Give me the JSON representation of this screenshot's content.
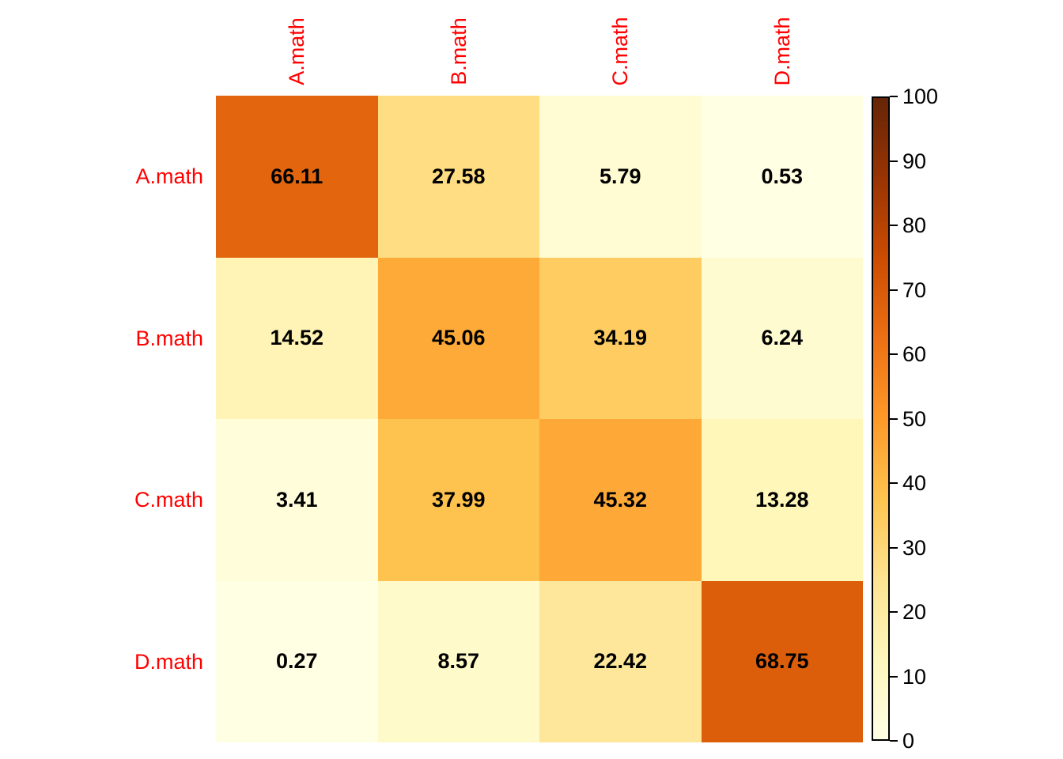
{
  "chart_data": {
    "type": "heatmap",
    "rows": [
      "A.math",
      "B.math",
      "C.math",
      "D.math"
    ],
    "columns": [
      "A.math",
      "B.math",
      "C.math",
      "D.math"
    ],
    "values": [
      [
        66.11,
        27.58,
        5.79,
        0.53
      ],
      [
        14.52,
        45.06,
        34.19,
        6.24
      ],
      [
        3.41,
        37.99,
        45.32,
        13.28
      ],
      [
        0.27,
        8.57,
        22.42,
        68.75
      ]
    ],
    "cell_labels": [
      [
        "66.11",
        "27.58",
        "5.79",
        "0.53"
      ],
      [
        "14.52",
        "45.06",
        "34.19",
        "6.24"
      ],
      [
        "3.41",
        "37.99",
        "45.32",
        "13.28"
      ],
      [
        "0.27",
        "8.57",
        "22.42",
        "68.75"
      ]
    ],
    "colorbar": {
      "min": 0,
      "max": 100,
      "tick_labels": [
        "0",
        "10",
        "20",
        "30",
        "40",
        "50",
        "60",
        "70",
        "80",
        "90",
        "100"
      ],
      "tick_values": [
        0,
        10,
        20,
        30,
        40,
        50,
        60,
        70,
        80,
        90,
        100
      ]
    },
    "palette": {
      "name": "YlOrBr",
      "stops": [
        "#FFFFE5",
        "#FFF7BC",
        "#FEE391",
        "#FEC44F",
        "#FE9929",
        "#EC7014",
        "#CC4C02",
        "#993404",
        "#662506"
      ]
    },
    "colors": {
      "axis_label": "#ff0000",
      "cell_text": "#000000",
      "tick_text": "#000000",
      "colorbar_border": "#000000",
      "background": "#ffffff"
    },
    "legend_position": "right",
    "grid": "off",
    "title": ""
  }
}
